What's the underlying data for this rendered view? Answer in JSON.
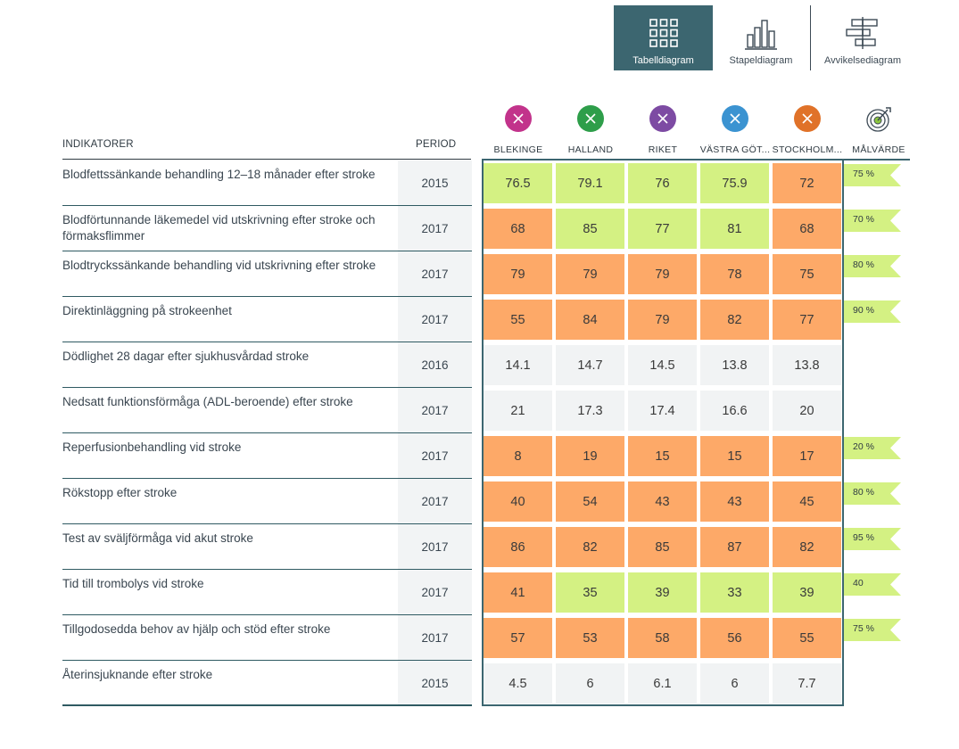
{
  "toolbar": {
    "table_label": "Tabelldiagram",
    "bar_label": "Stapeldiagram",
    "deviation_label": "Avvikelsediagram",
    "active_color": "#3c6670"
  },
  "header": {
    "indicators": "INDIKATORER",
    "period": "PERIOD",
    "target": "MÅLVÄRDE"
  },
  "regions": [
    {
      "name": "BLEKINGE",
      "color": "#c2338b"
    },
    {
      "name": "HALLAND",
      "color": "#2e9e4a"
    },
    {
      "name": "RIKET",
      "color": "#7d4ba3"
    },
    {
      "name": "VÄSTRA GÖT...",
      "color": "#3b93d1"
    },
    {
      "name": "STOCKHOLM...",
      "color": "#e07229"
    }
  ],
  "colors": {
    "green": "#d4f183",
    "orange": "#fda968",
    "gray": "#f1f3f4",
    "flag": "#d4f183"
  },
  "rows": [
    {
      "indicator": "Blodfettssänkande behandling 12–18 månader efter stroke",
      "period": "2015",
      "values": [
        "76.5",
        "79.1",
        "76",
        "75.9",
        "72"
      ],
      "status": [
        "green",
        "green",
        "green",
        "green",
        "orange"
      ],
      "target": "75 %"
    },
    {
      "indicator": "Blodförtunnande läkemedel vid utskrivning efter stroke och förmaksflimmer",
      "period": "2017",
      "values": [
        "68",
        "85",
        "77",
        "81",
        "68"
      ],
      "status": [
        "orange",
        "green",
        "green",
        "green",
        "orange"
      ],
      "target": "70 %"
    },
    {
      "indicator": "Blodtryckssänkande behandling vid utskrivning efter stroke",
      "period": "2017",
      "values": [
        "79",
        "79",
        "79",
        "78",
        "75"
      ],
      "status": [
        "orange",
        "orange",
        "orange",
        "orange",
        "orange"
      ],
      "target": "80 %"
    },
    {
      "indicator": "Direktinläggning på strokeenhet",
      "period": "2017",
      "values": [
        "55",
        "84",
        "79",
        "82",
        "77"
      ],
      "status": [
        "orange",
        "orange",
        "orange",
        "orange",
        "orange"
      ],
      "target": "90 %"
    },
    {
      "indicator": "Dödlighet 28 dagar efter sjukhusvårdad stroke",
      "period": "2016",
      "values": [
        "14.1",
        "14.7",
        "14.5",
        "13.8",
        "13.8"
      ],
      "status": [
        "gray",
        "gray",
        "gray",
        "gray",
        "gray"
      ],
      "target": ""
    },
    {
      "indicator": "Nedsatt funktionsförmåga (ADL-beroende) efter stroke",
      "period": "2017",
      "values": [
        "21",
        "17.3",
        "17.4",
        "16.6",
        "20"
      ],
      "status": [
        "gray",
        "gray",
        "gray",
        "gray",
        "gray"
      ],
      "target": ""
    },
    {
      "indicator": "Reperfusionbehandling vid stroke",
      "period": "2017",
      "values": [
        "8",
        "19",
        "15",
        "15",
        "17"
      ],
      "status": [
        "orange",
        "orange",
        "orange",
        "orange",
        "orange"
      ],
      "target": "20 %"
    },
    {
      "indicator": "Rökstopp efter stroke",
      "period": "2017",
      "values": [
        "40",
        "54",
        "43",
        "43",
        "45"
      ],
      "status": [
        "orange",
        "orange",
        "orange",
        "orange",
        "orange"
      ],
      "target": "80 %"
    },
    {
      "indicator": "Test av sväljförmåga vid akut stroke",
      "period": "2017",
      "values": [
        "86",
        "82",
        "85",
        "87",
        "82"
      ],
      "status": [
        "orange",
        "orange",
        "orange",
        "orange",
        "orange"
      ],
      "target": "95 %"
    },
    {
      "indicator": "Tid till trombolys vid stroke",
      "period": "2017",
      "values": [
        "41",
        "35",
        "39",
        "33",
        "39"
      ],
      "status": [
        "orange",
        "green",
        "green",
        "green",
        "green"
      ],
      "target": "40"
    },
    {
      "indicator": "Tillgodosedda behov av hjälp och stöd efter stroke",
      "period": "2017",
      "values": [
        "57",
        "53",
        "58",
        "56",
        "55"
      ],
      "status": [
        "orange",
        "orange",
        "orange",
        "orange",
        "orange"
      ],
      "target": "75 %"
    },
    {
      "indicator": "Återinsjuknande efter stroke",
      "period": "2015",
      "values": [
        "4.5",
        "6",
        "6.1",
        "6",
        "7.7"
      ],
      "status": [
        "gray",
        "gray",
        "gray",
        "gray",
        "gray"
      ],
      "target": ""
    }
  ]
}
